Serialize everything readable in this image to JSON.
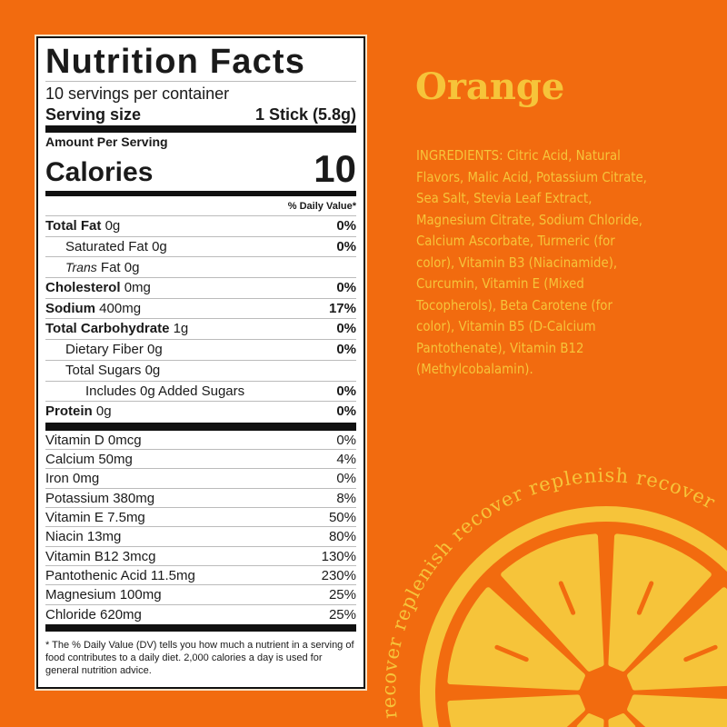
{
  "label": {
    "title": "Nutrition Facts",
    "servings": "10 servings per container",
    "serving_size_label": "Serving size",
    "serving_size_value": "1 Stick (5.8g)",
    "amount_per_serving": "Amount Per Serving",
    "calories_label": "Calories",
    "calories_value": "10",
    "daily_value_header": "% Daily Value*",
    "nutrients": [
      {
        "name": "Total Fat",
        "amount": "0g",
        "dv": "0%",
        "bold": true,
        "indent": 0
      },
      {
        "name": "Saturated Fat",
        "amount": "0g",
        "dv": "0%",
        "bold": false,
        "indent": 1
      },
      {
        "name": "Trans",
        "amount": "Fat 0g",
        "dv": "",
        "bold": false,
        "indent": 1,
        "italic": true
      },
      {
        "name": "Cholesterol",
        "amount": "0mg",
        "dv": "0%",
        "bold": true,
        "indent": 0
      },
      {
        "name": "Sodium",
        "amount": "400mg",
        "dv": "17%",
        "bold": true,
        "indent": 0
      },
      {
        "name": "Total Carbohydrate",
        "amount": "1g",
        "dv": "0%",
        "bold": true,
        "indent": 0
      },
      {
        "name": "Dietary Fiber",
        "amount": "0g",
        "dv": "0%",
        "bold": false,
        "indent": 1
      },
      {
        "name": "Total Sugars",
        "amount": "0g",
        "dv": "",
        "bold": false,
        "indent": 1
      },
      {
        "name": "Includes 0g Added Sugars",
        "amount": "",
        "dv": "0%",
        "bold": false,
        "indent": 2
      },
      {
        "name": "Protein",
        "amount": "0g",
        "dv": "0%",
        "bold": true,
        "indent": 0
      }
    ],
    "vitamins": [
      {
        "name": "Vitamin D 0mcg",
        "dv": "0%"
      },
      {
        "name": "Calcium 50mg",
        "dv": "4%"
      },
      {
        "name": "Iron 0mg",
        "dv": "0%"
      },
      {
        "name": "Potassium 380mg",
        "dv": "8%"
      },
      {
        "name": "Vitamin E 7.5mg",
        "dv": "50%"
      },
      {
        "name": "Niacin 13mg",
        "dv": "80%"
      },
      {
        "name": "Vitamin B12 3mcg",
        "dv": "130%"
      },
      {
        "name": "Pantothenic Acid 11.5mg",
        "dv": "230%"
      },
      {
        "name": "Magnesium 100mg",
        "dv": "25%"
      },
      {
        "name": "Chloride 620mg",
        "dv": "25%"
      }
    ],
    "footnote": "* The % Daily Value (DV) tells you how much a nutrient in a serving of food contributes to a daily diet. 2,000 calories a day is used for general nutrition advice."
  },
  "flavor": "Orange",
  "ingredients": "INGREDIENTS: Citric Acid, Natural Flavors, Malic Acid, Potassium Citrate, Sea Salt, Stevia Leaf Extract, Magnesium Citrate, Sodium Chloride, Calcium Ascorbate, Turmeric (for color), Vitamin B3 (Niacinamide), Curcumin, Vitamin E (Mixed Tocopherols), Beta Carotene (for color), Vitamin B5 (D-Calcium Pantothenate), Vitamin B12 (Methylcobalamin).",
  "arc_text": "recover  replenish  recover  replenish  recover",
  "colors": {
    "background": "#F26B0F",
    "accent": "#F6C43A"
  }
}
